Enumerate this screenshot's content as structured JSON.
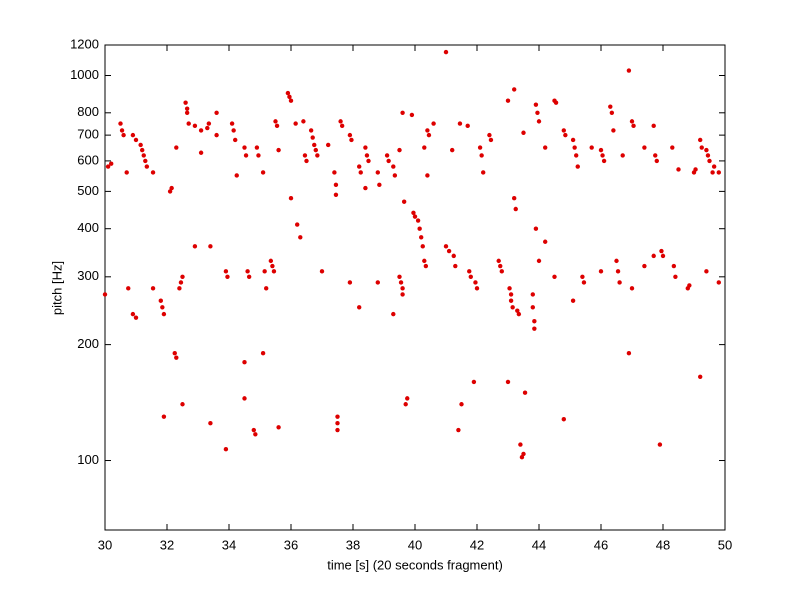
{
  "chart_data": {
    "type": "scatter",
    "xlabel": "time [s] (20 seconds fragment)",
    "ylabel": "pitch [Hz]",
    "color": "#dd0000",
    "log_y": true,
    "xlim": [
      30,
      50
    ],
    "ylim": [
      66,
      1200
    ],
    "xticks": [
      30,
      32,
      34,
      36,
      38,
      40,
      42,
      44,
      46,
      48,
      50
    ],
    "yticks": [
      100,
      200,
      300,
      400,
      500,
      600,
      700,
      800,
      1000,
      1200
    ],
    "x": [
      30.1,
      30.2,
      30.0,
      30.5,
      30.55,
      30.6,
      30.7,
      30.75,
      30.9,
      31.0,
      30.9,
      31.0,
      31.15,
      31.2,
      31.25,
      31.3,
      31.35,
      31.55,
      31.55,
      31.8,
      31.85,
      31.9,
      31.9,
      32.1,
      32.15,
      32.3,
      32.25,
      32.3,
      32.4,
      32.45,
      32.5,
      32.5,
      32.6,
      32.65,
      32.65,
      32.7,
      32.9,
      32.9,
      33.1,
      33.1,
      33.3,
      33.35,
      33.4,
      33.4,
      33.6,
      33.6,
      33.9,
      33.95,
      33.9,
      34.1,
      34.15,
      34.2,
      34.25,
      34.5,
      34.55,
      34.5,
      34.5,
      34.6,
      34.65,
      34.8,
      34.85,
      34.9,
      34.95,
      35.1,
      35.1,
      35.15,
      35.2,
      35.35,
      35.4,
      35.45,
      35.5,
      35.55,
      35.6,
      35.6,
      35.9,
      35.95,
      36.0,
      36.0,
      36.2,
      36.3,
      36.15,
      36.4,
      36.45,
      36.5,
      36.65,
      36.7,
      36.75,
      36.8,
      36.85,
      37.0,
      37.2,
      37.4,
      37.45,
      37.45,
      37.5,
      37.5,
      37.5,
      37.6,
      37.65,
      37.9,
      37.95,
      37.9,
      38.2,
      38.25,
      38.2,
      38.4,
      38.45,
      38.5,
      38.4,
      38.8,
      38.85,
      38.8,
      39.1,
      39.15,
      39.3,
      39.35,
      39.3,
      39.5,
      39.5,
      39.55,
      39.6,
      39.6,
      39.6,
      39.65,
      39.7,
      39.75,
      39.9,
      39.95,
      40.0,
      40.1,
      40.15,
      40.2,
      40.25,
      40.3,
      40.3,
      40.35,
      40.4,
      40.45,
      40.4,
      40.6,
      41.0,
      41.0,
      41.1,
      41.2,
      41.25,
      41.3,
      41.45,
      41.4,
      41.5,
      41.7,
      41.75,
      41.8,
      41.9,
      41.95,
      42.0,
      42.1,
      42.15,
      42.2,
      42.4,
      42.45,
      42.7,
      42.75,
      42.8,
      43.0,
      43.05,
      43.1,
      43.1,
      43.15,
      43.0,
      43.2,
      43.2,
      43.25,
      43.3,
      43.35,
      43.4,
      43.45,
      43.5,
      43.5,
      43.55,
      43.8,
      43.8,
      43.85,
      43.85,
      43.9,
      43.95,
      44.0,
      43.9,
      44.0,
      44.2,
      44.2,
      44.5,
      44.55,
      44.5,
      44.8,
      44.85,
      44.8,
      45.1,
      45.15,
      45.2,
      45.25,
      45.1,
      45.4,
      45.45,
      45.7,
      46.0,
      46.05,
      46.1,
      46.0,
      46.3,
      46.35,
      46.4,
      46.5,
      46.55,
      46.6,
      46.7,
      46.9,
      46.9,
      47.0,
      47.05,
      47.0,
      47.4,
      47.4,
      47.7,
      47.75,
      47.8,
      47.7,
      47.9,
      47.95,
      48.0,
      48.3,
      48.35,
      48.4,
      48.5,
      48.8,
      48.85,
      49.0,
      49.05,
      49.2,
      49.25,
      49.2,
      49.4,
      49.45,
      49.5,
      49.4,
      49.6,
      49.65,
      49.8,
      49.8
    ],
    "values": [
      580,
      590,
      270,
      750,
      720,
      700,
      560,
      280,
      700,
      680,
      240,
      235,
      660,
      640,
      620,
      600,
      580,
      560,
      280,
      260,
      250,
      240,
      130,
      500,
      510,
      650,
      190,
      185,
      280,
      290,
      300,
      140,
      850,
      820,
      800,
      750,
      740,
      360,
      720,
      630,
      730,
      750,
      360,
      125,
      800,
      700,
      310,
      300,
      107,
      750,
      720,
      680,
      550,
      650,
      620,
      180,
      145,
      310,
      300,
      120,
      117,
      650,
      620,
      560,
      190,
      310,
      280,
      330,
      320,
      310,
      760,
      740,
      640,
      122,
      900,
      880,
      860,
      480,
      410,
      380,
      750,
      760,
      620,
      600,
      720,
      690,
      660,
      640,
      620,
      310,
      660,
      560,
      520,
      490,
      130,
      125,
      120,
      760,
      740,
      700,
      680,
      290,
      580,
      560,
      250,
      650,
      620,
      600,
      510,
      560,
      520,
      290,
      620,
      600,
      580,
      550,
      240,
      640,
      300,
      290,
      280,
      270,
      800,
      470,
      140,
      145,
      790,
      440,
      430,
      420,
      400,
      380,
      360,
      650,
      330,
      320,
      720,
      700,
      550,
      750,
      1150,
      360,
      350,
      640,
      340,
      320,
      750,
      120,
      140,
      740,
      310,
      300,
      160,
      290,
      280,
      650,
      620,
      560,
      700,
      680,
      330,
      320,
      310,
      860,
      280,
      270,
      260,
      250,
      160,
      920,
      480,
      450,
      245,
      240,
      110,
      102,
      104,
      710,
      150,
      270,
      250,
      230,
      220,
      840,
      800,
      760,
      400,
      330,
      650,
      370,
      860,
      850,
      300,
      720,
      700,
      128,
      680,
      650,
      620,
      580,
      260,
      300,
      290,
      650,
      640,
      620,
      600,
      310,
      830,
      800,
      720,
      330,
      310,
      290,
      620,
      1030,
      190,
      760,
      740,
      280,
      650,
      320,
      740,
      620,
      600,
      340,
      110,
      350,
      340,
      650,
      320,
      300,
      570,
      280,
      285,
      560,
      570,
      680,
      650,
      165,
      640,
      620,
      600,
      310,
      560,
      580,
      290,
      560
    ]
  }
}
